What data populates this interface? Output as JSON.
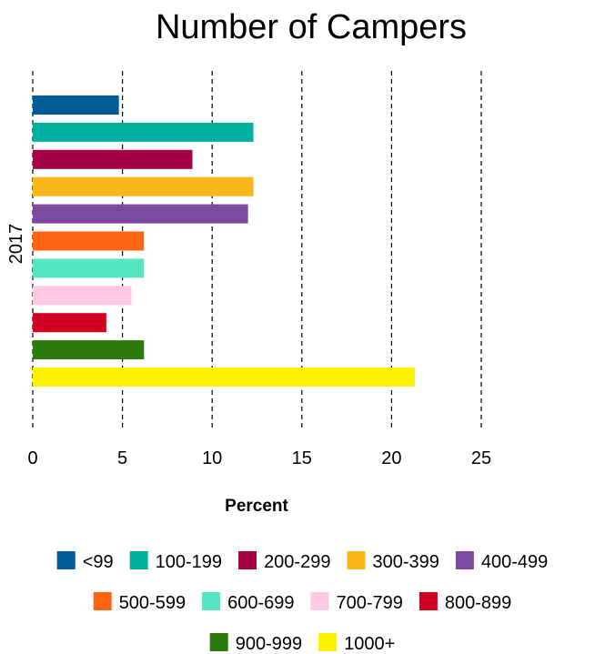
{
  "chart_data": {
    "type": "bar",
    "orientation": "horizontal",
    "title": "Number of Campers",
    "xlabel": "Percent",
    "ylabel": "2017",
    "xlim": [
      0,
      25
    ],
    "xticks": [
      "0",
      "5",
      "10",
      "15",
      "20",
      "25"
    ],
    "grid": "vertical-dashed",
    "legend_placement": "bottom",
    "categories": [
      "2017"
    ],
    "series": [
      {
        "name": "<99",
        "color": "#005b96",
        "values": [
          4.8
        ]
      },
      {
        "name": "100-199",
        "color": "#00b0a0",
        "values": [
          12.3
        ]
      },
      {
        "name": "200-299",
        "color": "#a50044",
        "values": [
          8.9
        ]
      },
      {
        "name": "300-399",
        "color": "#fbb61a",
        "values": [
          12.3
        ]
      },
      {
        "name": "400-499",
        "color": "#7a4ba0",
        "values": [
          12.0
        ]
      },
      {
        "name": "500-599",
        "color": "#ff6413",
        "values": [
          6.2
        ]
      },
      {
        "name": "600-699",
        "color": "#54e6c2",
        "values": [
          6.2
        ]
      },
      {
        "name": "700-799",
        "color": "#ffc8e4",
        "values": [
          5.5
        ]
      },
      {
        "name": "800-899",
        "color": "#d10020",
        "values": [
          4.1
        ]
      },
      {
        "name": "900-999",
        "color": "#2b7a0b",
        "values": [
          6.2
        ]
      },
      {
        "name": "1000+",
        "color": "#fff200",
        "values": [
          21.3
        ]
      }
    ]
  }
}
